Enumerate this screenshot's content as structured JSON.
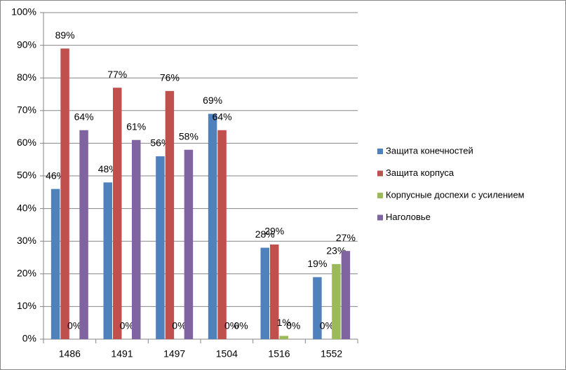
{
  "chart_data": {
    "type": "bar",
    "categories": [
      "1486",
      "1491",
      "1497",
      "1504",
      "1516",
      "1552"
    ],
    "series": [
      {
        "name": "Защита конечностей",
        "color": "#4f81bd",
        "values": [
          46,
          48,
          56,
          69,
          28,
          19
        ],
        "value_labels": [
          "46%",
          "48%",
          "56%",
          "69%",
          "28%",
          "19%"
        ]
      },
      {
        "name": "Защита корпуса",
        "color": "#c0504d",
        "values": [
          89,
          77,
          76,
          64,
          29,
          0
        ],
        "value_labels": [
          "89%",
          "77%",
          "76%",
          "64%",
          "29%",
          "0%"
        ]
      },
      {
        "name": "Корпусные доспехи с усилением",
        "color": "#9bbb59",
        "values": [
          0,
          0,
          0,
          0,
          1,
          23
        ],
        "value_labels": [
          "0%",
          "0%",
          "0%",
          "0%",
          "1%",
          "23%"
        ]
      },
      {
        "name": "Наголовье",
        "color": "#8064a2",
        "values": [
          64,
          61,
          58,
          0,
          0,
          27
        ],
        "value_labels": [
          "64%",
          "61%",
          "58%",
          "0%",
          "0%",
          "27%"
        ]
      }
    ],
    "ylim": [
      0,
      100
    ],
    "yticks": [
      {
        "value": 0,
        "label": "0%"
      },
      {
        "value": 10,
        "label": "10%"
      },
      {
        "value": 20,
        "label": "20%"
      },
      {
        "value": 30,
        "label": "30%"
      },
      {
        "value": 40,
        "label": "40%"
      },
      {
        "value": 50,
        "label": "50%"
      },
      {
        "value": 60,
        "label": "60%"
      },
      {
        "value": 70,
        "label": "70%"
      },
      {
        "value": 80,
        "label": "80%"
      },
      {
        "value": 90,
        "label": "90%"
      },
      {
        "value": 100,
        "label": "100%"
      }
    ],
    "grid": true,
    "legend": "right"
  }
}
